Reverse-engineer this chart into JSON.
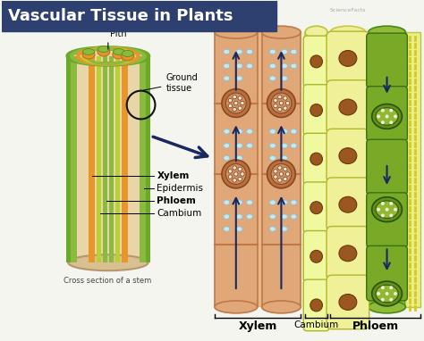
{
  "title": "Vascular Tissue in Plants",
  "title_bg_color": "#2d4070",
  "title_text_color": "#ffffff",
  "bg_color": "#f5f5f0",
  "stem_bg": "#e8d5a8",
  "stem_green_outer": "#6aaa28",
  "stem_green_inner": "#8aba40",
  "stem_orange": "#e8952a",
  "stem_yellow_green": "#b8d030",
  "xylem_tube_color": "#e0a878",
  "xylem_tube_edge": "#c07848",
  "xylem_vessel_outer": "#b87040",
  "xylem_vessel_inner": "#d09060",
  "xylem_dot_color": "#c8e8f0",
  "cambium_bg": "#f0f0a0",
  "cambium_cell_color": "#e8f080",
  "phloem_yellow_bg": "#e8ee90",
  "phloem_cell_color": "#d8e870",
  "phloem_green_bg": "#90bb38",
  "phloem_green_cell": "#78aa28",
  "phloem_sieve_color": "#609018",
  "brown_oval": "#9a5820",
  "arrow_color": "#1a2860",
  "dashed_yellow": "#d8c820",
  "labels": {
    "title": "Vascular Tissue in Plants",
    "pith": "Pith",
    "ground_tissue": "Ground\ntissue",
    "xylem": "Xylem",
    "epidermis": "Epidermis",
    "phloem": "Phloem",
    "cambium": "Cambium",
    "cross_section": "Cross section of a stem",
    "bottom_xylem": "Xylem",
    "bottom_cambium": "Cambium",
    "bottom_phloem": "Phloem"
  }
}
